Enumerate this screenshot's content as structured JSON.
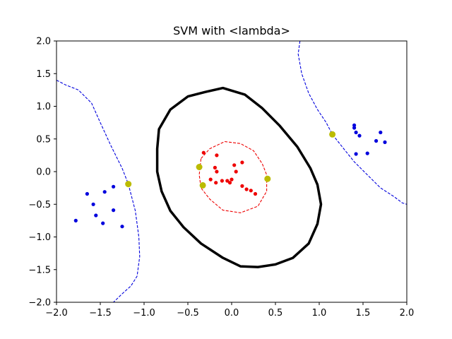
{
  "chart_data": {
    "type": "scatter",
    "title": "SVM with <lambda>",
    "xlim": [
      -2.0,
      2.0
    ],
    "ylim": [
      -2.0,
      2.0
    ],
    "xticks": [
      "−2.0",
      "−1.5",
      "−1.0",
      "−0.5",
      "0.0",
      "0.5",
      "1.0",
      "1.5",
      "2.0"
    ],
    "xtick_values": [
      -2.0,
      -1.5,
      -1.0,
      -0.5,
      0.0,
      0.5,
      1.0,
      1.5,
      2.0
    ],
    "yticks": [
      "−2.0",
      "−1.5",
      "−1.0",
      "−0.5",
      "0.0",
      "0.5",
      "1.0",
      "1.5",
      "2.0"
    ],
    "ytick_values": [
      -2.0,
      -1.5,
      -1.0,
      -0.5,
      0.0,
      0.5,
      1.0,
      1.5,
      2.0
    ],
    "grid": false,
    "series": [
      {
        "kind": "points",
        "color": "#0000dd",
        "points": [
          [
            -1.65,
            -0.34
          ],
          [
            -1.45,
            -0.31
          ],
          [
            -1.35,
            -0.23
          ],
          [
            -1.58,
            -0.5
          ],
          [
            -1.55,
            -0.67
          ],
          [
            -1.47,
            -0.79
          ],
          [
            -1.35,
            -0.59
          ],
          [
            -1.25,
            -0.84
          ],
          [
            -1.78,
            -0.75
          ],
          [
            1.4,
            0.67
          ],
          [
            1.4,
            0.71
          ],
          [
            1.42,
            0.6
          ],
          [
            1.46,
            0.55
          ],
          [
            1.7,
            0.6
          ],
          [
            1.75,
            0.45
          ],
          [
            1.65,
            0.47
          ],
          [
            1.55,
            0.28
          ],
          [
            1.42,
            0.27
          ]
        ]
      },
      {
        "kind": "points",
        "color": "#ee0000",
        "points": [
          [
            -0.32,
            0.29
          ],
          [
            -0.17,
            0.25
          ],
          [
            -0.19,
            0.06
          ],
          [
            -0.17,
            0.0
          ],
          [
            0.03,
            0.1
          ],
          [
            0.12,
            0.14
          ],
          [
            0.05,
            0.0
          ],
          [
            -0.24,
            -0.12
          ],
          [
            -0.18,
            -0.17
          ],
          [
            -0.11,
            -0.14
          ],
          [
            -0.05,
            -0.14
          ],
          [
            0.0,
            -0.12
          ],
          [
            -0.02,
            -0.17
          ],
          [
            0.12,
            -0.22
          ],
          [
            0.17,
            -0.27
          ],
          [
            0.22,
            -0.29
          ],
          [
            0.27,
            -0.34
          ]
        ]
      },
      {
        "kind": "support_vectors",
        "color": "#bbbb00",
        "points": [
          [
            -1.18,
            -0.19
          ],
          [
            -0.37,
            0.07
          ],
          [
            -0.33,
            -0.21
          ],
          [
            0.41,
            -0.11
          ],
          [
            1.15,
            0.57
          ]
        ]
      },
      {
        "kind": "boundary",
        "color": "#000000",
        "points": [
          [
            -0.3,
            1.22
          ],
          [
            -0.5,
            1.15
          ],
          [
            -0.7,
            0.95
          ],
          [
            -0.83,
            0.65
          ],
          [
            -0.85,
            0.35
          ],
          [
            -0.85,
            0.0
          ],
          [
            -0.8,
            -0.3
          ],
          [
            -0.7,
            -0.6
          ],
          [
            -0.55,
            -0.85
          ],
          [
            -0.35,
            -1.1
          ],
          [
            -0.1,
            -1.32
          ],
          [
            0.1,
            -1.45
          ],
          [
            0.3,
            -1.46
          ],
          [
            0.5,
            -1.42
          ],
          [
            0.7,
            -1.32
          ],
          [
            0.88,
            -1.1
          ],
          [
            0.98,
            -0.8
          ],
          [
            1.02,
            -0.5
          ],
          [
            0.98,
            -0.2
          ],
          [
            0.9,
            0.05
          ],
          [
            0.75,
            0.38
          ],
          [
            0.55,
            0.7
          ],
          [
            0.35,
            0.97
          ],
          [
            0.15,
            1.18
          ],
          [
            -0.1,
            1.28
          ],
          [
            -0.3,
            1.22
          ]
        ]
      },
      {
        "kind": "margin",
        "color": "#ee0000",
        "points": [
          [
            -0.35,
            0.2
          ],
          [
            -0.25,
            0.35
          ],
          [
            -0.08,
            0.46
          ],
          [
            0.1,
            0.43
          ],
          [
            0.25,
            0.32
          ],
          [
            0.35,
            0.12
          ],
          [
            0.4,
            -0.05
          ],
          [
            0.4,
            -0.3
          ],
          [
            0.3,
            -0.53
          ],
          [
            0.1,
            -0.63
          ],
          [
            -0.1,
            -0.59
          ],
          [
            -0.25,
            -0.42
          ],
          [
            -0.35,
            -0.25
          ],
          [
            -0.37,
            -0.05
          ],
          [
            -0.35,
            0.2
          ]
        ]
      },
      {
        "kind": "margin",
        "color": "#0000dd",
        "points": [
          [
            -2.0,
            1.4
          ],
          [
            -1.9,
            1.33
          ],
          [
            -1.75,
            1.25
          ],
          [
            -1.6,
            1.05
          ],
          [
            -1.5,
            0.75
          ],
          [
            -1.38,
            0.4
          ],
          [
            -1.25,
            0.05
          ],
          [
            -1.18,
            -0.19
          ],
          [
            -1.1,
            -0.6
          ],
          [
            -1.06,
            -1.0
          ],
          [
            -1.05,
            -1.3
          ],
          [
            -1.08,
            -1.6
          ],
          [
            -1.15,
            -1.75
          ],
          [
            -1.25,
            -1.87
          ],
          [
            -1.35,
            -2.0
          ]
        ]
      },
      {
        "kind": "margin",
        "color": "#0000dd",
        "points": [
          [
            0.78,
            2.0
          ],
          [
            0.76,
            1.8
          ],
          [
            0.8,
            1.5
          ],
          [
            0.88,
            1.2
          ],
          [
            0.98,
            0.95
          ],
          [
            1.08,
            0.75
          ],
          [
            1.15,
            0.57
          ],
          [
            1.28,
            0.35
          ],
          [
            1.4,
            0.15
          ],
          [
            1.55,
            -0.05
          ],
          [
            1.7,
            -0.25
          ],
          [
            1.85,
            -0.38
          ],
          [
            1.95,
            -0.48
          ],
          [
            2.0,
            -0.5
          ]
        ]
      }
    ]
  }
}
